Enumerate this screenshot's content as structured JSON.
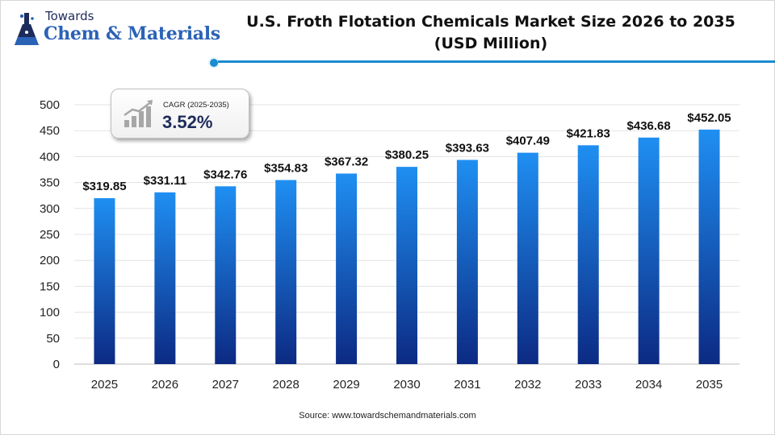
{
  "brand": {
    "top": "Towards",
    "main": "Chem & Materials"
  },
  "title": {
    "line1": "U.S. Froth Flotation Chemicals Market Size 2026 to 2035",
    "line2": "(USD Million)"
  },
  "cagr": {
    "label": "CAGR (2025-2035)",
    "value": "3.52%",
    "icon": "growth-chart-icon"
  },
  "source": "Source: www.towardschemandmaterials.com",
  "colors": {
    "bar_top": "#1f8ff2",
    "bar_bottom": "#0c2a83",
    "accent": "#1a8ccf",
    "brand_blue": "#2a62b6"
  },
  "chart_data": {
    "type": "bar",
    "title": "U.S. Froth Flotation Chemicals Market Size 2026 to 2035 (USD Million)",
    "categories": [
      "2025",
      "2026",
      "2027",
      "2028",
      "2029",
      "2030",
      "2031",
      "2032",
      "2033",
      "2034",
      "2035"
    ],
    "values": [
      319.85,
      331.11,
      342.76,
      354.83,
      367.32,
      380.25,
      393.63,
      407.49,
      421.83,
      436.68,
      452.05
    ],
    "value_labels": [
      "$319.85",
      "$331.11",
      "$342.76",
      "$354.83",
      "$367.32",
      "$380.25",
      "$393.63",
      "$407.49",
      "$421.83",
      "$436.68",
      "$452.05"
    ],
    "ylim": [
      0,
      500
    ],
    "yticks": [
      0,
      50,
      100,
      150,
      200,
      250,
      300,
      350,
      400,
      450,
      500
    ],
    "xlabel": "",
    "ylabel": "",
    "grid": true,
    "legend": "none"
  }
}
